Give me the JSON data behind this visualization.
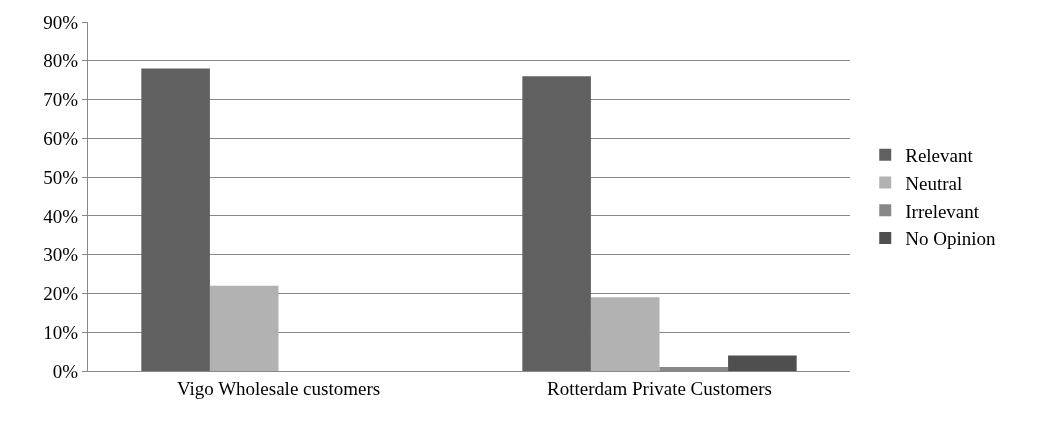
{
  "chart_data": {
    "type": "bar",
    "categories": [
      "Vigo Wholesale customers",
      "Rotterdam Private Customers"
    ],
    "series": [
      {
        "name": "Relevant",
        "color": "#606060",
        "values": [
          78,
          76
        ]
      },
      {
        "name": "Neutral",
        "color": "#b2b2b2",
        "values": [
          22,
          19
        ]
      },
      {
        "name": "Irrelevant",
        "color": "#888888",
        "values": [
          0,
          1
        ]
      },
      {
        "name": "No Opinion",
        "color": "#4f4f4f",
        "values": [
          0,
          4
        ]
      }
    ],
    "ylim": [
      0,
      90
    ],
    "yticks": [
      {
        "value": 0,
        "label": "0%"
      },
      {
        "value": 10,
        "label": "10%"
      },
      {
        "value": 20,
        "label": "20%"
      },
      {
        "value": 30,
        "label": "30%"
      },
      {
        "value": 40,
        "label": "40%"
      },
      {
        "value": 50,
        "label": "50%"
      },
      {
        "value": 60,
        "label": "60%"
      },
      {
        "value": 70,
        "label": "70%"
      },
      {
        "value": 80,
        "label": "80%"
      },
      {
        "value": 90,
        "label": "90%"
      }
    ],
    "grid": "y",
    "legend": "right"
  }
}
